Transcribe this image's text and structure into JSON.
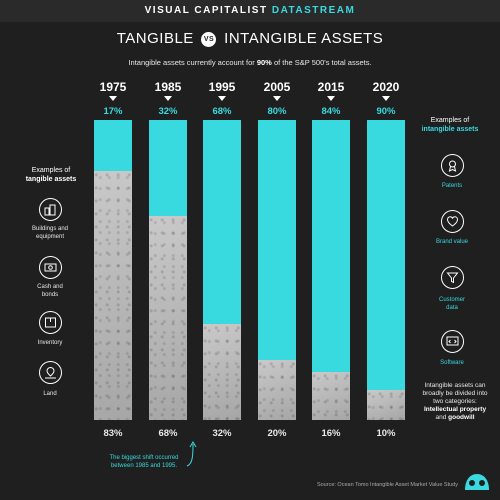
{
  "brand": {
    "prefix": "VISUAL CAPITALIST",
    "suffix": "DATASTREAM"
  },
  "title": {
    "left": "TANGIBLE",
    "vs": "VS",
    "right": "INTANGIBLE ASSETS"
  },
  "subtitle": {
    "pre": "Intangible assets currently account for ",
    "highlight": "90%",
    "post": " of the S&P 500's total assets."
  },
  "chart_data": {
    "type": "bar",
    "stacked": true,
    "categories": [
      "1975",
      "1985",
      "1995",
      "2005",
      "2015",
      "2020"
    ],
    "series": [
      {
        "name": "intangible assets",
        "values": [
          17,
          32,
          68,
          80,
          84,
          90
        ],
        "color": "#39d9e0"
      },
      {
        "name": "tangible assets",
        "values": [
          83,
          68,
          32,
          20,
          16,
          10
        ],
        "color": "#b8b8b8"
      }
    ],
    "top_labels": [
      "17%",
      "32%",
      "68%",
      "80%",
      "84%",
      "90%"
    ],
    "bottom_labels": [
      "83%",
      "68%",
      "32%",
      "20%",
      "16%",
      "10%"
    ],
    "ylim": [
      0,
      100
    ]
  },
  "left_panel": {
    "heading_line1": "Examples of",
    "heading_line2": "tangible assets",
    "items": [
      {
        "label_line1": "Buildings and",
        "label_line2": "equipment",
        "icon": "buildings-icon"
      },
      {
        "label_line1": "Cash and",
        "label_line2": "bonds",
        "icon": "cash-icon"
      },
      {
        "label_line1": "Inventory",
        "label_line2": "",
        "icon": "inventory-icon"
      },
      {
        "label_line1": "Land",
        "label_line2": "",
        "icon": "land-icon"
      }
    ]
  },
  "right_panel": {
    "heading_line1": "Examples of",
    "heading_line2": "intangible assets",
    "items": [
      {
        "label_line1": "Patents",
        "label_line2": "",
        "icon": "patent-icon"
      },
      {
        "label_line1": "Brand value",
        "label_line2": "",
        "icon": "heart-icon"
      },
      {
        "label_line1": "Customer",
        "label_line2": "data",
        "icon": "funnel-icon"
      },
      {
        "label_line1": "Software",
        "label_line2": "",
        "icon": "software-icon"
      }
    ]
  },
  "note": {
    "pre": "Intangible assets can broadly be divided into two categories: ",
    "bold1": "Intellectual property",
    "mid": " and ",
    "bold2": "goodwill"
  },
  "shift_note": {
    "line1": "The biggest shift occurred",
    "line2": "between 1985 and 1995."
  },
  "source": "Source: Ocean Tomo Intangible Asset Market Value Study",
  "colors": {
    "accent": "#39d9e0",
    "background": "#1f1f1f",
    "tangible": "#b8b8b8"
  }
}
